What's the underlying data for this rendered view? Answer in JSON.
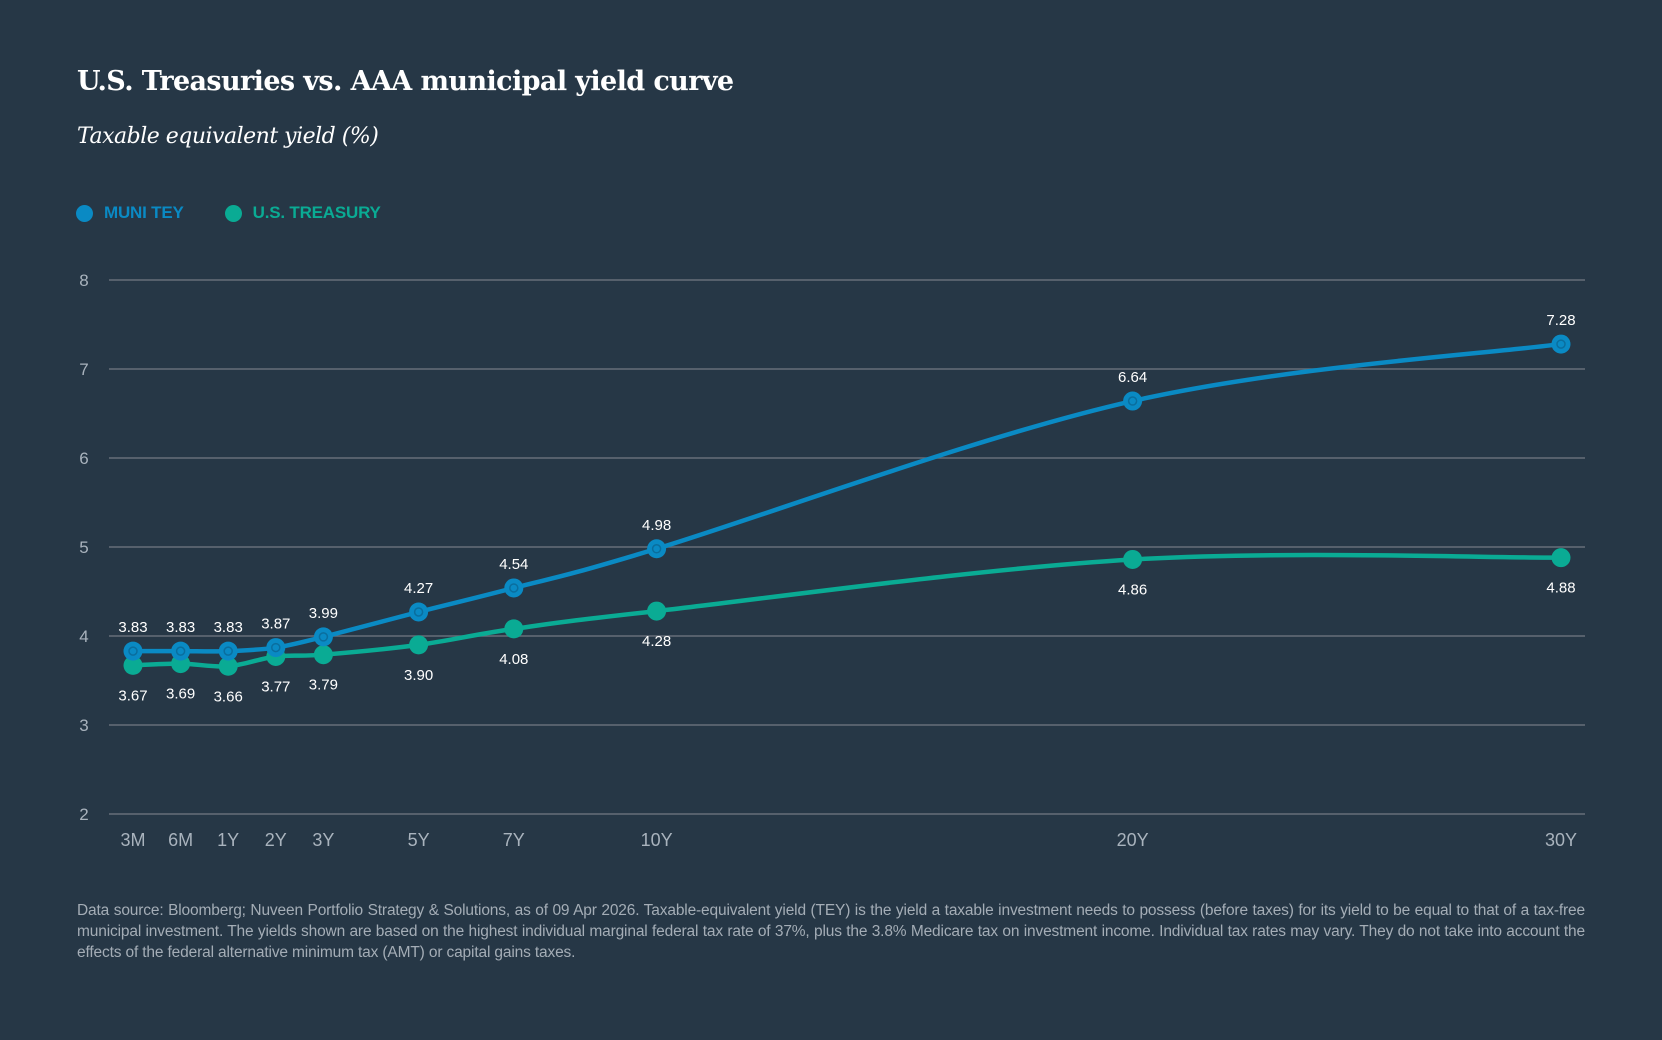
{
  "header": {
    "title": "U.S. Treasuries vs. AAA municipal yield curve",
    "subtitle": "Taxable equivalent yield (%)"
  },
  "legend": [
    {
      "label": "MUNI TEY",
      "color": "#0a8ac4"
    },
    {
      "label": "U.S. TREASURY",
      "color": "#0aab94"
    }
  ],
  "footnote": "Data source: Bloomberg; Nuveen Portfolio Strategy & Solutions, as of 09 Apr 2026. Taxable-equivalent yield (TEY) is the yield a taxable investment needs to possess (before taxes) for its yield to be equal to that of a tax-free municipal investment. The yields shown are based on the highest individual marginal federal tax rate of 37%, plus the 3.8% Medicare tax on investment income. Individual tax rates may vary. They do not take into account the effects of the federal alternative minimum tax (AMT) or capital gains taxes.",
  "chart_data": {
    "type": "line",
    "title": "U.S. Treasuries vs. AAA municipal yield curve",
    "subtitle": "Taxable equivalent yield (%)",
    "xlabel": "",
    "ylabel": "Taxable equivalent yield (%)",
    "categories": [
      "3M",
      "6M",
      "1Y",
      "2Y",
      "3Y",
      "5Y",
      "7Y",
      "10Y",
      "20Y",
      "30Y"
    ],
    "x_positions": [
      0,
      1,
      2,
      3,
      4,
      6,
      8,
      11,
      21,
      30
    ],
    "x_range": [
      0,
      30
    ],
    "ylim": [
      2,
      8
    ],
    "yticks": [
      2,
      3,
      4,
      5,
      6,
      7,
      8
    ],
    "grid": true,
    "smooth": true,
    "legend_position": "top-left",
    "series": [
      {
        "name": "MUNI TEY",
        "color": "#0a8ac4",
        "marker": "ringed-circle",
        "label_position": "above",
        "values": [
          3.83,
          3.83,
          3.83,
          3.87,
          3.99,
          4.27,
          4.54,
          4.98,
          6.64,
          7.28
        ]
      },
      {
        "name": "U.S. TREASURY",
        "color": "#0aab94",
        "marker": "circle",
        "label_position": "below",
        "values": [
          3.67,
          3.69,
          3.66,
          3.77,
          3.79,
          3.9,
          4.08,
          4.28,
          4.86,
          4.88
        ]
      }
    ]
  }
}
